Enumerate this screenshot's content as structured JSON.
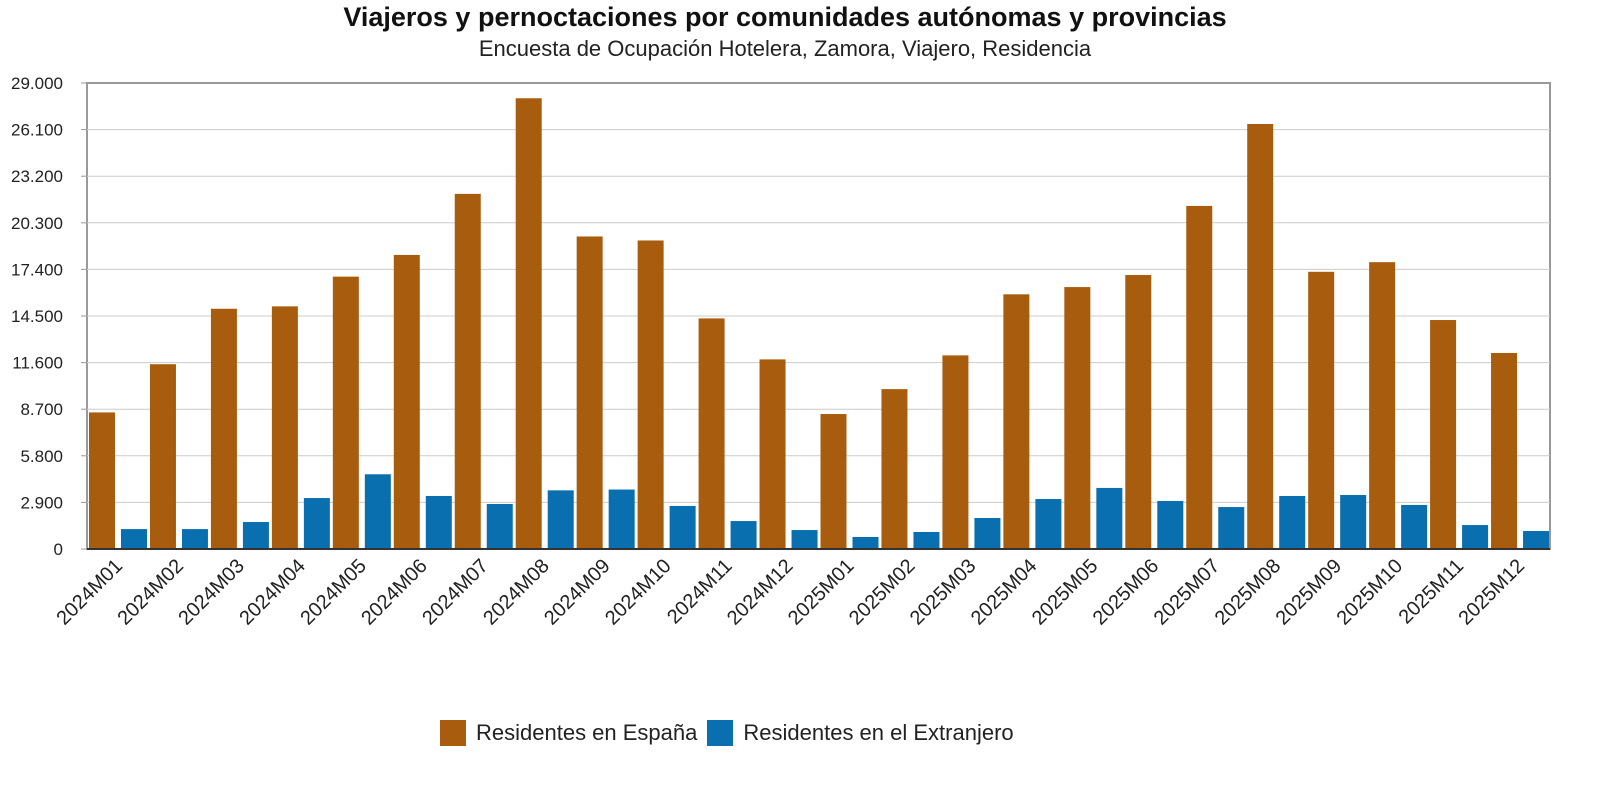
{
  "chart_data": {
    "type": "bar",
    "title": "Viajeros y pernoctaciones por comunidades autónomas y provincias",
    "subtitle": "Encuesta de Ocupación Hotelera, Zamora, Viajero, Residencia",
    "categories": [
      "2024M01",
      "2024M02",
      "2024M03",
      "2024M04",
      "2024M05",
      "2024M06",
      "2024M07",
      "2024M08",
      "2024M09",
      "2024M10",
      "2024M11",
      "2024M12",
      "2025M01",
      "2025M02",
      "2025M03",
      "2025M04",
      "2025M05",
      "2025M06",
      "2025M07",
      "2025M08",
      "2025M09",
      "2025M10",
      "2025M11",
      "2025M12"
    ],
    "series": [
      {
        "name": "Residentes en España",
        "color": "#a85c0e",
        "values": [
          8500,
          11500,
          14950,
          15100,
          16950,
          18300,
          22100,
          28050,
          19450,
          19200,
          14350,
          11800,
          8400,
          9950,
          12050,
          15850,
          16300,
          17050,
          21350,
          26450,
          17250,
          17850,
          14250,
          12200
        ]
      },
      {
        "name": "Residentes en el Extranjero",
        "color": "#0a6fae",
        "values": [
          1240,
          1240,
          1680,
          3170,
          4650,
          3300,
          2800,
          3650,
          3700,
          2680,
          1740,
          1180,
          750,
          1060,
          1930,
          3110,
          3800,
          2990,
          2610,
          3300,
          3360,
          2740,
          1490,
          1120
        ]
      }
    ],
    "ylim": [
      0,
      29000
    ],
    "yticks": [
      "0",
      "2.900",
      "5.800",
      "8.700",
      "11.600",
      "14.500",
      "17.400",
      "20.300",
      "23.200",
      "26.100",
      "29.000"
    ],
    "grid": true,
    "legend": "bottom"
  }
}
